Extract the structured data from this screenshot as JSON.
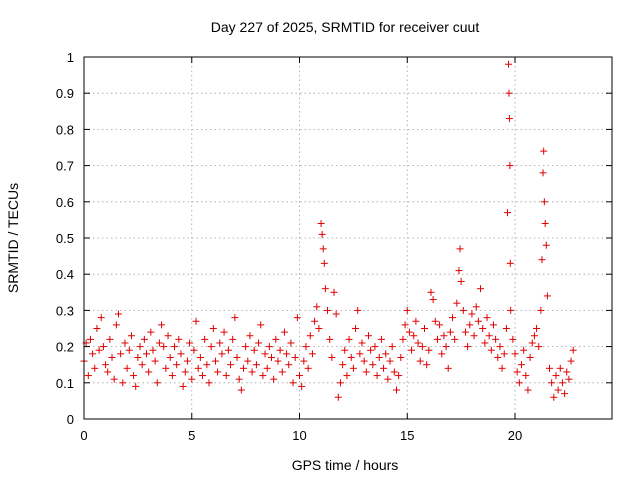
{
  "chart_data": {
    "type": "scatter",
    "title": "Day 227 of 2025, SRMTID for receiver cuut",
    "xlabel": "GPS time / hours",
    "ylabel": "SRMTID / TECUs",
    "xlim": [
      0,
      24.5
    ],
    "ylim": [
      0,
      1
    ],
    "x_ticks": [
      0,
      5,
      10,
      15,
      20
    ],
    "x_tick_labels": [
      "0",
      "5",
      "10",
      "15",
      "20"
    ],
    "y_ticks": [
      0,
      0.1,
      0.2,
      0.3,
      0.4,
      0.5,
      0.6,
      0.7,
      0.8,
      0.9,
      1
    ],
    "y_tick_labels": [
      "0",
      "0.1",
      "0.2",
      "0.3",
      "0.4",
      "0.5",
      "0.6",
      "0.7",
      "0.8",
      "0.9",
      "1"
    ],
    "grid": true,
    "marker": "plus",
    "color": "#e00000",
    "series": [
      {
        "name": "SRMTID",
        "points": [
          [
            0.0,
            0.16
          ],
          [
            0.1,
            0.21
          ],
          [
            0.2,
            0.12
          ],
          [
            0.3,
            0.22
          ],
          [
            0.4,
            0.18
          ],
          [
            0.5,
            0.14
          ],
          [
            0.6,
            0.25
          ],
          [
            0.7,
            0.19
          ],
          [
            0.8,
            0.28
          ],
          [
            0.9,
            0.2
          ],
          [
            1.0,
            0.15
          ],
          [
            1.1,
            0.13
          ],
          [
            1.2,
            0.22
          ],
          [
            1.3,
            0.17
          ],
          [
            1.4,
            0.11
          ],
          [
            1.5,
            0.26
          ],
          [
            1.6,
            0.29
          ],
          [
            1.7,
            0.18
          ],
          [
            1.8,
            0.1
          ],
          [
            1.9,
            0.21
          ],
          [
            2.0,
            0.14
          ],
          [
            2.1,
            0.19
          ],
          [
            2.2,
            0.23
          ],
          [
            2.3,
            0.12
          ],
          [
            2.4,
            0.09
          ],
          [
            2.5,
            0.17
          ],
          [
            2.6,
            0.2
          ],
          [
            2.7,
            0.15
          ],
          [
            2.8,
            0.22
          ],
          [
            2.9,
            0.18
          ],
          [
            3.0,
            0.13
          ],
          [
            3.1,
            0.24
          ],
          [
            3.2,
            0.19
          ],
          [
            3.3,
            0.16
          ],
          [
            3.4,
            0.1
          ],
          [
            3.5,
            0.21
          ],
          [
            3.6,
            0.26
          ],
          [
            3.7,
            0.2
          ],
          [
            3.8,
            0.14
          ],
          [
            3.9,
            0.23
          ],
          [
            4.0,
            0.17
          ],
          [
            4.1,
            0.12
          ],
          [
            4.2,
            0.2
          ],
          [
            4.3,
            0.15
          ],
          [
            4.4,
            0.22
          ],
          [
            4.5,
            0.18
          ],
          [
            4.6,
            0.09
          ],
          [
            4.7,
            0.13
          ],
          [
            4.8,
            0.16
          ],
          [
            4.9,
            0.21
          ],
          [
            5.0,
            0.11
          ],
          [
            5.1,
            0.19
          ],
          [
            5.2,
            0.27
          ],
          [
            5.3,
            0.14
          ],
          [
            5.4,
            0.17
          ],
          [
            5.5,
            0.12
          ],
          [
            5.6,
            0.22
          ],
          [
            5.7,
            0.15
          ],
          [
            5.8,
            0.1
          ],
          [
            5.9,
            0.2
          ],
          [
            6.0,
            0.25
          ],
          [
            6.1,
            0.16
          ],
          [
            6.2,
            0.13
          ],
          [
            6.3,
            0.21
          ],
          [
            6.4,
            0.18
          ],
          [
            6.5,
            0.24
          ],
          [
            6.6,
            0.12
          ],
          [
            6.7,
            0.19
          ],
          [
            6.8,
            0.15
          ],
          [
            6.9,
            0.22
          ],
          [
            7.0,
            0.28
          ],
          [
            7.1,
            0.17
          ],
          [
            7.2,
            0.11
          ],
          [
            7.3,
            0.08
          ],
          [
            7.4,
            0.14
          ],
          [
            7.5,
            0.2
          ],
          [
            7.6,
            0.16
          ],
          [
            7.7,
            0.23
          ],
          [
            7.8,
            0.13
          ],
          [
            7.9,
            0.19
          ],
          [
            8.0,
            0.15
          ],
          [
            8.1,
            0.21
          ],
          [
            8.2,
            0.26
          ],
          [
            8.3,
            0.12
          ],
          [
            8.4,
            0.18
          ],
          [
            8.5,
            0.14
          ],
          [
            8.6,
            0.2
          ],
          [
            8.7,
            0.17
          ],
          [
            8.8,
            0.11
          ],
          [
            8.9,
            0.22
          ],
          [
            9.0,
            0.16
          ],
          [
            9.1,
            0.19
          ],
          [
            9.2,
            0.13
          ],
          [
            9.3,
            0.24
          ],
          [
            9.4,
            0.18
          ],
          [
            9.5,
            0.15
          ],
          [
            9.6,
            0.21
          ],
          [
            9.7,
            0.1
          ],
          [
            9.8,
            0.17
          ],
          [
            9.9,
            0.28
          ],
          [
            10.0,
            0.12
          ],
          [
            10.1,
            0.09
          ],
          [
            10.2,
            0.16
          ],
          [
            10.3,
            0.2
          ],
          [
            10.4,
            0.14
          ],
          [
            10.5,
            0.23
          ],
          [
            10.6,
            0.18
          ],
          [
            10.7,
            0.27
          ],
          [
            10.8,
            0.31
          ],
          [
            10.9,
            0.25
          ],
          [
            11.0,
            0.54
          ],
          [
            11.05,
            0.51
          ],
          [
            11.1,
            0.47
          ],
          [
            11.15,
            0.43
          ],
          [
            11.2,
            0.36
          ],
          [
            11.3,
            0.3
          ],
          [
            11.4,
            0.22
          ],
          [
            11.5,
            0.17
          ],
          [
            11.6,
            0.35
          ],
          [
            11.7,
            0.29
          ],
          [
            11.8,
            0.06
          ],
          [
            11.9,
            0.1
          ],
          [
            12.0,
            0.15
          ],
          [
            12.1,
            0.19
          ],
          [
            12.2,
            0.12
          ],
          [
            12.3,
            0.22
          ],
          [
            12.4,
            0.17
          ],
          [
            12.5,
            0.14
          ],
          [
            12.6,
            0.25
          ],
          [
            12.7,
            0.3
          ],
          [
            12.8,
            0.18
          ],
          [
            12.9,
            0.21
          ],
          [
            13.0,
            0.16
          ],
          [
            13.1,
            0.13
          ],
          [
            13.2,
            0.23
          ],
          [
            13.3,
            0.19
          ],
          [
            13.4,
            0.15
          ],
          [
            13.5,
            0.2
          ],
          [
            13.6,
            0.12
          ],
          [
            13.7,
            0.17
          ],
          [
            13.8,
            0.22
          ],
          [
            13.9,
            0.14
          ],
          [
            14.0,
            0.18
          ],
          [
            14.1,
            0.11
          ],
          [
            14.2,
            0.16
          ],
          [
            14.3,
            0.2
          ],
          [
            14.4,
            0.13
          ],
          [
            14.5,
            0.08
          ],
          [
            14.6,
            0.12
          ],
          [
            14.7,
            0.17
          ],
          [
            14.8,
            0.22
          ],
          [
            14.9,
            0.26
          ],
          [
            15.0,
            0.3
          ],
          [
            15.1,
            0.24
          ],
          [
            15.2,
            0.19
          ],
          [
            15.3,
            0.23
          ],
          [
            15.4,
            0.27
          ],
          [
            15.5,
            0.21
          ],
          [
            15.6,
            0.16
          ],
          [
            15.7,
            0.2
          ],
          [
            15.8,
            0.25
          ],
          [
            15.9,
            0.15
          ],
          [
            16.0,
            0.19
          ],
          [
            16.1,
            0.35
          ],
          [
            16.2,
            0.33
          ],
          [
            16.3,
            0.27
          ],
          [
            16.4,
            0.22
          ],
          [
            16.5,
            0.26
          ],
          [
            16.6,
            0.18
          ],
          [
            16.7,
            0.23
          ],
          [
            16.8,
            0.2
          ],
          [
            16.9,
            0.14
          ],
          [
            17.0,
            0.24
          ],
          [
            17.1,
            0.28
          ],
          [
            17.2,
            0.22
          ],
          [
            17.3,
            0.32
          ],
          [
            17.4,
            0.41
          ],
          [
            17.45,
            0.47
          ],
          [
            17.5,
            0.38
          ],
          [
            17.6,
            0.3
          ],
          [
            17.7,
            0.24
          ],
          [
            17.8,
            0.2
          ],
          [
            17.9,
            0.26
          ],
          [
            18.0,
            0.29
          ],
          [
            18.1,
            0.23
          ],
          [
            18.2,
            0.31
          ],
          [
            18.3,
            0.27
          ],
          [
            18.4,
            0.36
          ],
          [
            18.5,
            0.25
          ],
          [
            18.6,
            0.21
          ],
          [
            18.7,
            0.28
          ],
          [
            18.8,
            0.23
          ],
          [
            18.9,
            0.19
          ],
          [
            19.0,
            0.26
          ],
          [
            19.1,
            0.22
          ],
          [
            19.2,
            0.17
          ],
          [
            19.3,
            0.2
          ],
          [
            19.4,
            0.14
          ],
          [
            19.5,
            0.18
          ],
          [
            19.6,
            0.25
          ],
          [
            19.65,
            0.57
          ],
          [
            19.7,
            0.98
          ],
          [
            19.72,
            0.9
          ],
          [
            19.74,
            0.83
          ],
          [
            19.76,
            0.7
          ],
          [
            19.78,
            0.43
          ],
          [
            19.8,
            0.3
          ],
          [
            19.9,
            0.22
          ],
          [
            20.0,
            0.18
          ],
          [
            20.1,
            0.13
          ],
          [
            20.2,
            0.1
          ],
          [
            20.3,
            0.15
          ],
          [
            20.4,
            0.19
          ],
          [
            20.5,
            0.12
          ],
          [
            20.6,
            0.08
          ],
          [
            20.7,
            0.17
          ],
          [
            20.8,
            0.21
          ],
          [
            20.9,
            0.23
          ],
          [
            21.0,
            0.25
          ],
          [
            21.1,
            0.2
          ],
          [
            21.2,
            0.3
          ],
          [
            21.25,
            0.44
          ],
          [
            21.3,
            0.68
          ],
          [
            21.33,
            0.74
          ],
          [
            21.36,
            0.6
          ],
          [
            21.4,
            0.54
          ],
          [
            21.45,
            0.48
          ],
          [
            21.5,
            0.34
          ],
          [
            21.6,
            0.14
          ],
          [
            21.7,
            0.1
          ],
          [
            21.8,
            0.06
          ],
          [
            21.9,
            0.12
          ],
          [
            22.0,
            0.08
          ],
          [
            22.1,
            0.14
          ],
          [
            22.2,
            0.1
          ],
          [
            22.3,
            0.07
          ],
          [
            22.4,
            0.13
          ],
          [
            22.5,
            0.11
          ],
          [
            22.6,
            0.16
          ],
          [
            22.7,
            0.19
          ]
        ]
      }
    ]
  }
}
